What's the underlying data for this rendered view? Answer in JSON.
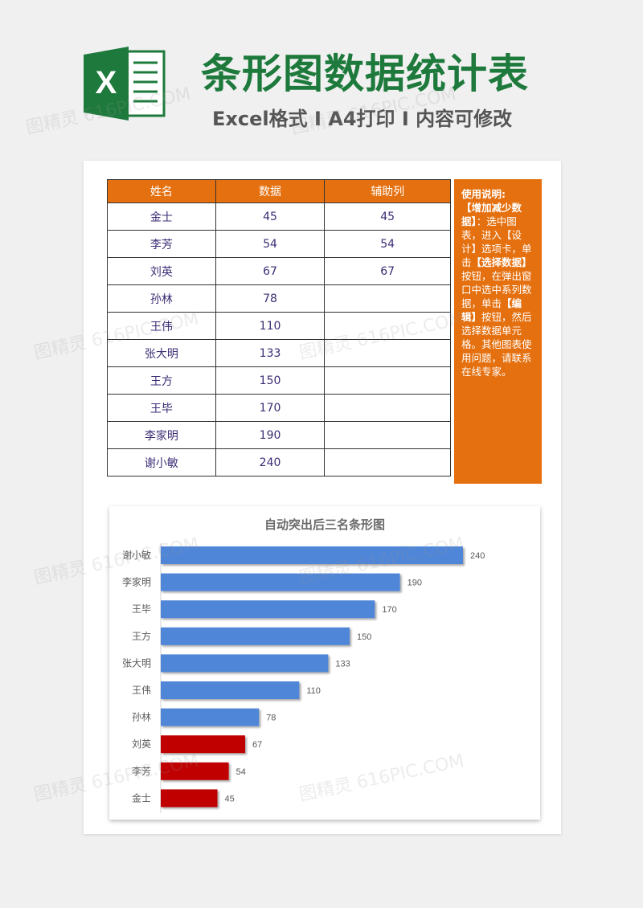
{
  "header": {
    "title": "条形图数据统计表",
    "subtitle": "Excel格式 Ⅰ A4打印 Ⅰ 内容可修改",
    "logo_letter": "X"
  },
  "table": {
    "columns": [
      "姓名",
      "数据",
      "辅助列"
    ],
    "rows": [
      [
        "金士",
        "45",
        "45"
      ],
      [
        "李芳",
        "54",
        "54"
      ],
      [
        "刘英",
        "67",
        "67"
      ],
      [
        "孙林",
        "78",
        ""
      ],
      [
        "王伟",
        "110",
        ""
      ],
      [
        "张大明",
        "133",
        ""
      ],
      [
        "王方",
        "150",
        ""
      ],
      [
        "王毕",
        "170",
        ""
      ],
      [
        "李家明",
        "190",
        ""
      ],
      [
        "谢小敏",
        "240",
        ""
      ]
    ]
  },
  "notes": {
    "heading": "使用说明:",
    "bold1": "【增加减少数据】",
    "text1": "：选中图表，进入【设计】选项卡，单击",
    "bold2": "【选择数据】",
    "text2": "按钮，在弹出窗口中选中系列数据，单击",
    "bold3": "【编辑】",
    "text3": "按钮，然后选择数据单元格。其他图表使用问题，请联系在线专家。"
  },
  "watermark": "图精灵 616PIC.COM",
  "chart_data": {
    "type": "bar",
    "orientation": "horizontal",
    "title": "自动突出后三名条形图",
    "categories": [
      "谢小敏",
      "李家明",
      "王毕",
      "王方",
      "张大明",
      "王伟",
      "孙林",
      "刘英",
      "李芳",
      "金士"
    ],
    "values": [
      240,
      190,
      170,
      150,
      133,
      110,
      78,
      67,
      54,
      45
    ],
    "highlight_bottom_n": 3,
    "colors": {
      "normal": "#4f86d8",
      "highlight": "#c00000"
    },
    "data_labels": true,
    "xlim": [
      0,
      240
    ],
    "grid": false
  }
}
